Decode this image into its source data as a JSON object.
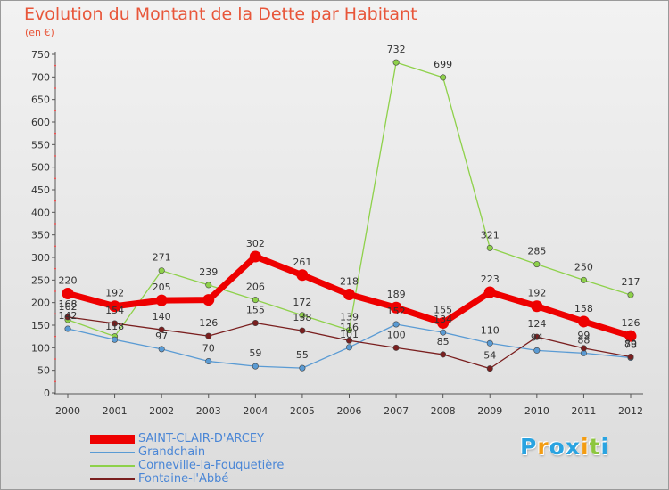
{
  "title": "Evolution du Montant de la Dette par Habitant",
  "subtitle": "(en €)",
  "logo": {
    "letters": [
      "P",
      "r",
      "o",
      "x",
      "i",
      "t",
      "i"
    ],
    "colors": [
      "#2aa3e0",
      "#f39c12",
      "#2aa3e0",
      "#2aa3e0",
      "#f39c12",
      "#8dc63f",
      "#2aa3e0"
    ]
  },
  "chart_data": {
    "type": "line",
    "title": "Evolution du Montant de la Dette par Habitant",
    "subtitle": "(en €)",
    "x": [
      "2000",
      "2001",
      "2002",
      "2003",
      "2004",
      "2005",
      "2006",
      "2007",
      "2008",
      "2009",
      "2010",
      "2011",
      "2012"
    ],
    "ylim": [
      0,
      750
    ],
    "yticks": [
      0,
      50,
      100,
      150,
      200,
      250,
      300,
      350,
      400,
      450,
      500,
      550,
      600,
      650,
      700,
      750
    ],
    "grid": false,
    "legend_position": "bottom-left",
    "series": [
      {
        "name": "SAINT-CLAIR-D'ARCEY",
        "color": "#ee0000",
        "thick": true,
        "values": [
          220,
          192,
          205,
          206,
          302,
          261,
          218,
          189,
          155,
          223,
          192,
          158,
          126
        ],
        "labels": [
          "220",
          "192",
          "205",
          "",
          "302",
          "261",
          "218",
          "189",
          "155",
          "223",
          "192",
          "158",
          "126"
        ]
      },
      {
        "name": "Grandchain",
        "color": "#5a9bd4",
        "thick": false,
        "values": [
          142,
          118,
          97,
          70,
          59,
          55,
          101,
          152,
          134,
          110,
          94,
          88,
          78
        ],
        "labels": [
          "142",
          "118",
          "97",
          "70",
          "59",
          "55",
          "101",
          "152",
          "134",
          "110",
          "94",
          "88",
          "78"
        ]
      },
      {
        "name": "Corneville-la-Fouquetière",
        "color": "#8ed14a",
        "thick": false,
        "values": [
          162,
          125,
          271,
          239,
          206,
          172,
          139,
          732,
          699,
          321,
          285,
          250,
          217
        ],
        "labels": [
          "162",
          "",
          "271",
          "239",
          "206",
          "172",
          "139",
          "732",
          "699",
          "321",
          "285",
          "250",
          "217"
        ]
      },
      {
        "name": "Fontaine-l'Abbé",
        "color": "#7a1f1f",
        "thick": false,
        "values": [
          168,
          154,
          140,
          126,
          155,
          138,
          116,
          100,
          85,
          54,
          124,
          99,
          80
        ],
        "labels": [
          "168",
          "154",
          "140",
          "126",
          "155",
          "138",
          "116",
          "100",
          "85",
          "54",
          "124",
          "99",
          "80"
        ]
      }
    ]
  }
}
